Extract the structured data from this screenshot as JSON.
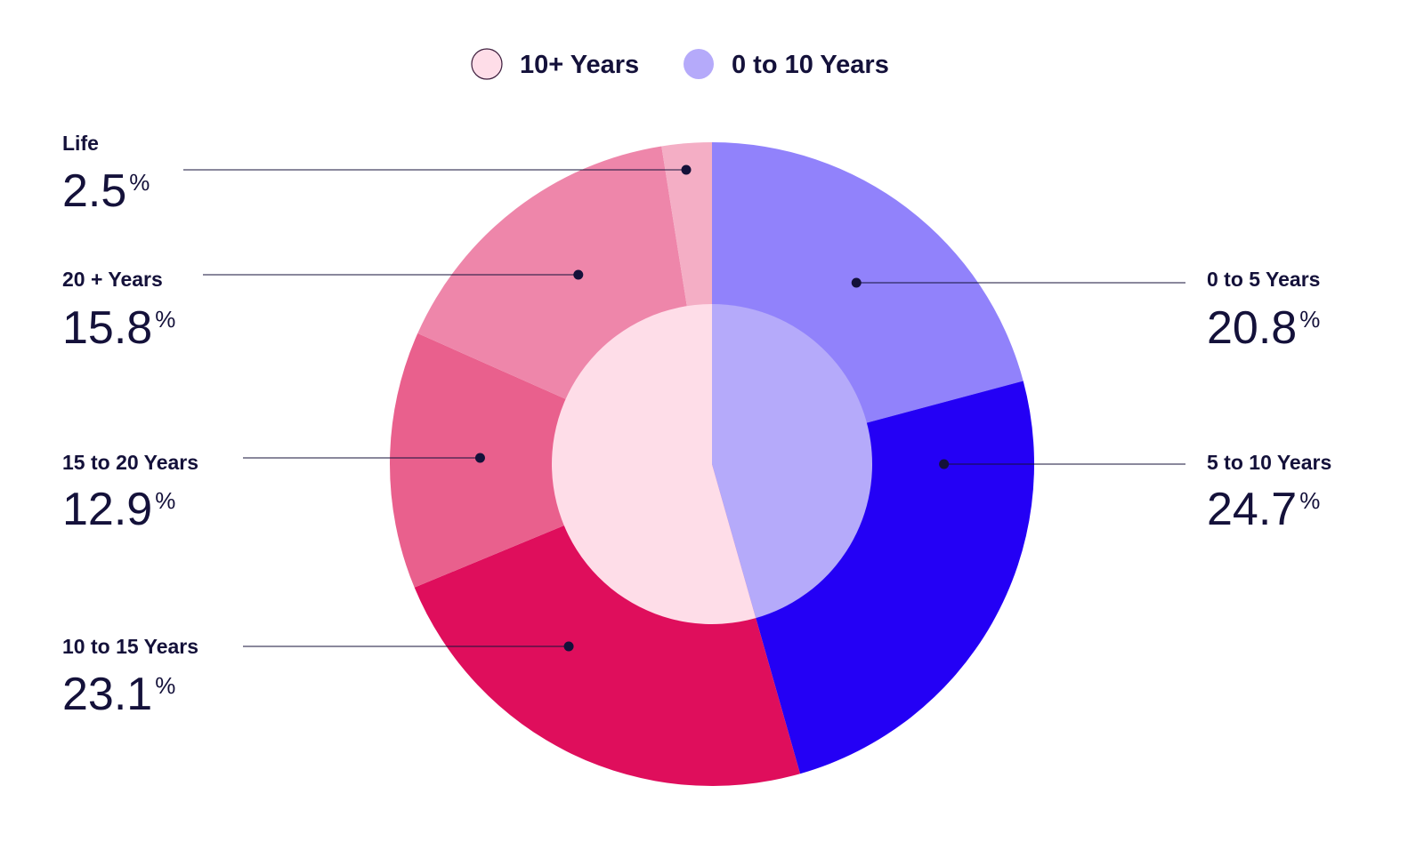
{
  "chart_data": {
    "type": "pie",
    "subtype": "nested-donut",
    "legend": [
      {
        "label": "10+ Years",
        "color": "#FEDDE8",
        "stroke": "#3a1a3a"
      },
      {
        "label": "0 to 10 Years",
        "color": "#B5AAFA"
      }
    ],
    "inner": [
      {
        "name": "0 to 10 Years",
        "value": 45.5,
        "color": "#B5AAFA"
      },
      {
        "name": "10+ Years",
        "value": 54.3,
        "color": "#FEDDE8"
      }
    ],
    "outer": [
      {
        "name": "0 to 5 Years",
        "value": 20.8,
        "display": "20.8",
        "color": "#9182FB"
      },
      {
        "name": "5 to 10 Years",
        "value": 24.7,
        "display": "24.7",
        "color": "#2400F5"
      },
      {
        "name": "10 to 15 Years",
        "value": 23.1,
        "display": "23.1",
        "color": "#DF0E5C"
      },
      {
        "name": "15 to 20 Years",
        "value": 12.9,
        "display": "12.9",
        "color": "#E9608D"
      },
      {
        "name": "20 + Years",
        "value": 15.8,
        "display": "15.8",
        "color": "#EE86AA"
      },
      {
        "name": "Life",
        "value": 2.5,
        "display": "2.5",
        "color": "#F4AEC5"
      }
    ],
    "percent_sign": "%",
    "legend_placement": "top-center"
  }
}
